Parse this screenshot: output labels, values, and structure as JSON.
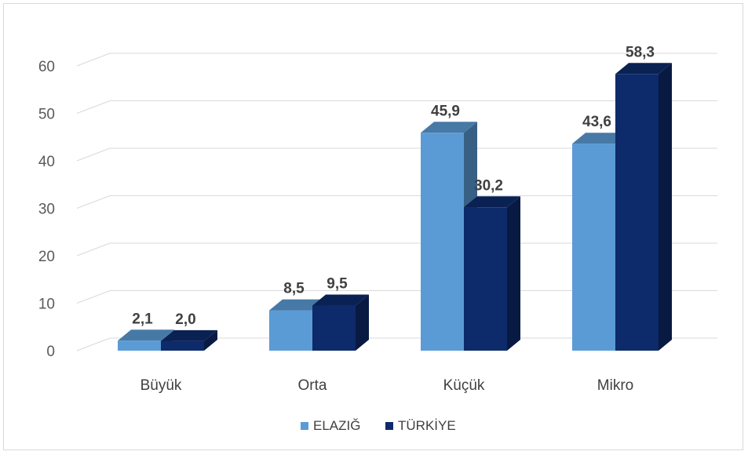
{
  "chart_data": {
    "type": "bar",
    "style": "3d-clustered-column",
    "categories": [
      "Büyük",
      "Orta",
      "Küçük",
      "Mikro"
    ],
    "series": [
      {
        "name": "ELAZIĞ",
        "values": [
          2.1,
          8.5,
          45.9,
          43.6
        ],
        "labels": [
          "2,1",
          "8,5",
          "45,9",
          "43,6"
        ],
        "color": "#5b9bd5"
      },
      {
        "name": "TÜRKİYE",
        "values": [
          2.0,
          9.5,
          30.2,
          58.3
        ],
        "labels": [
          "2,0",
          "9,5",
          "30,2",
          "58,3"
        ],
        "color": "#0d2a6b"
      }
    ],
    "y_ticks": [
      "0",
      "10",
      "20",
      "30",
      "40",
      "50",
      "60"
    ],
    "ylim": [
      0,
      60
    ],
    "title": "",
    "xlabel": "",
    "ylabel": "",
    "grid": true,
    "legend": "bottom"
  }
}
